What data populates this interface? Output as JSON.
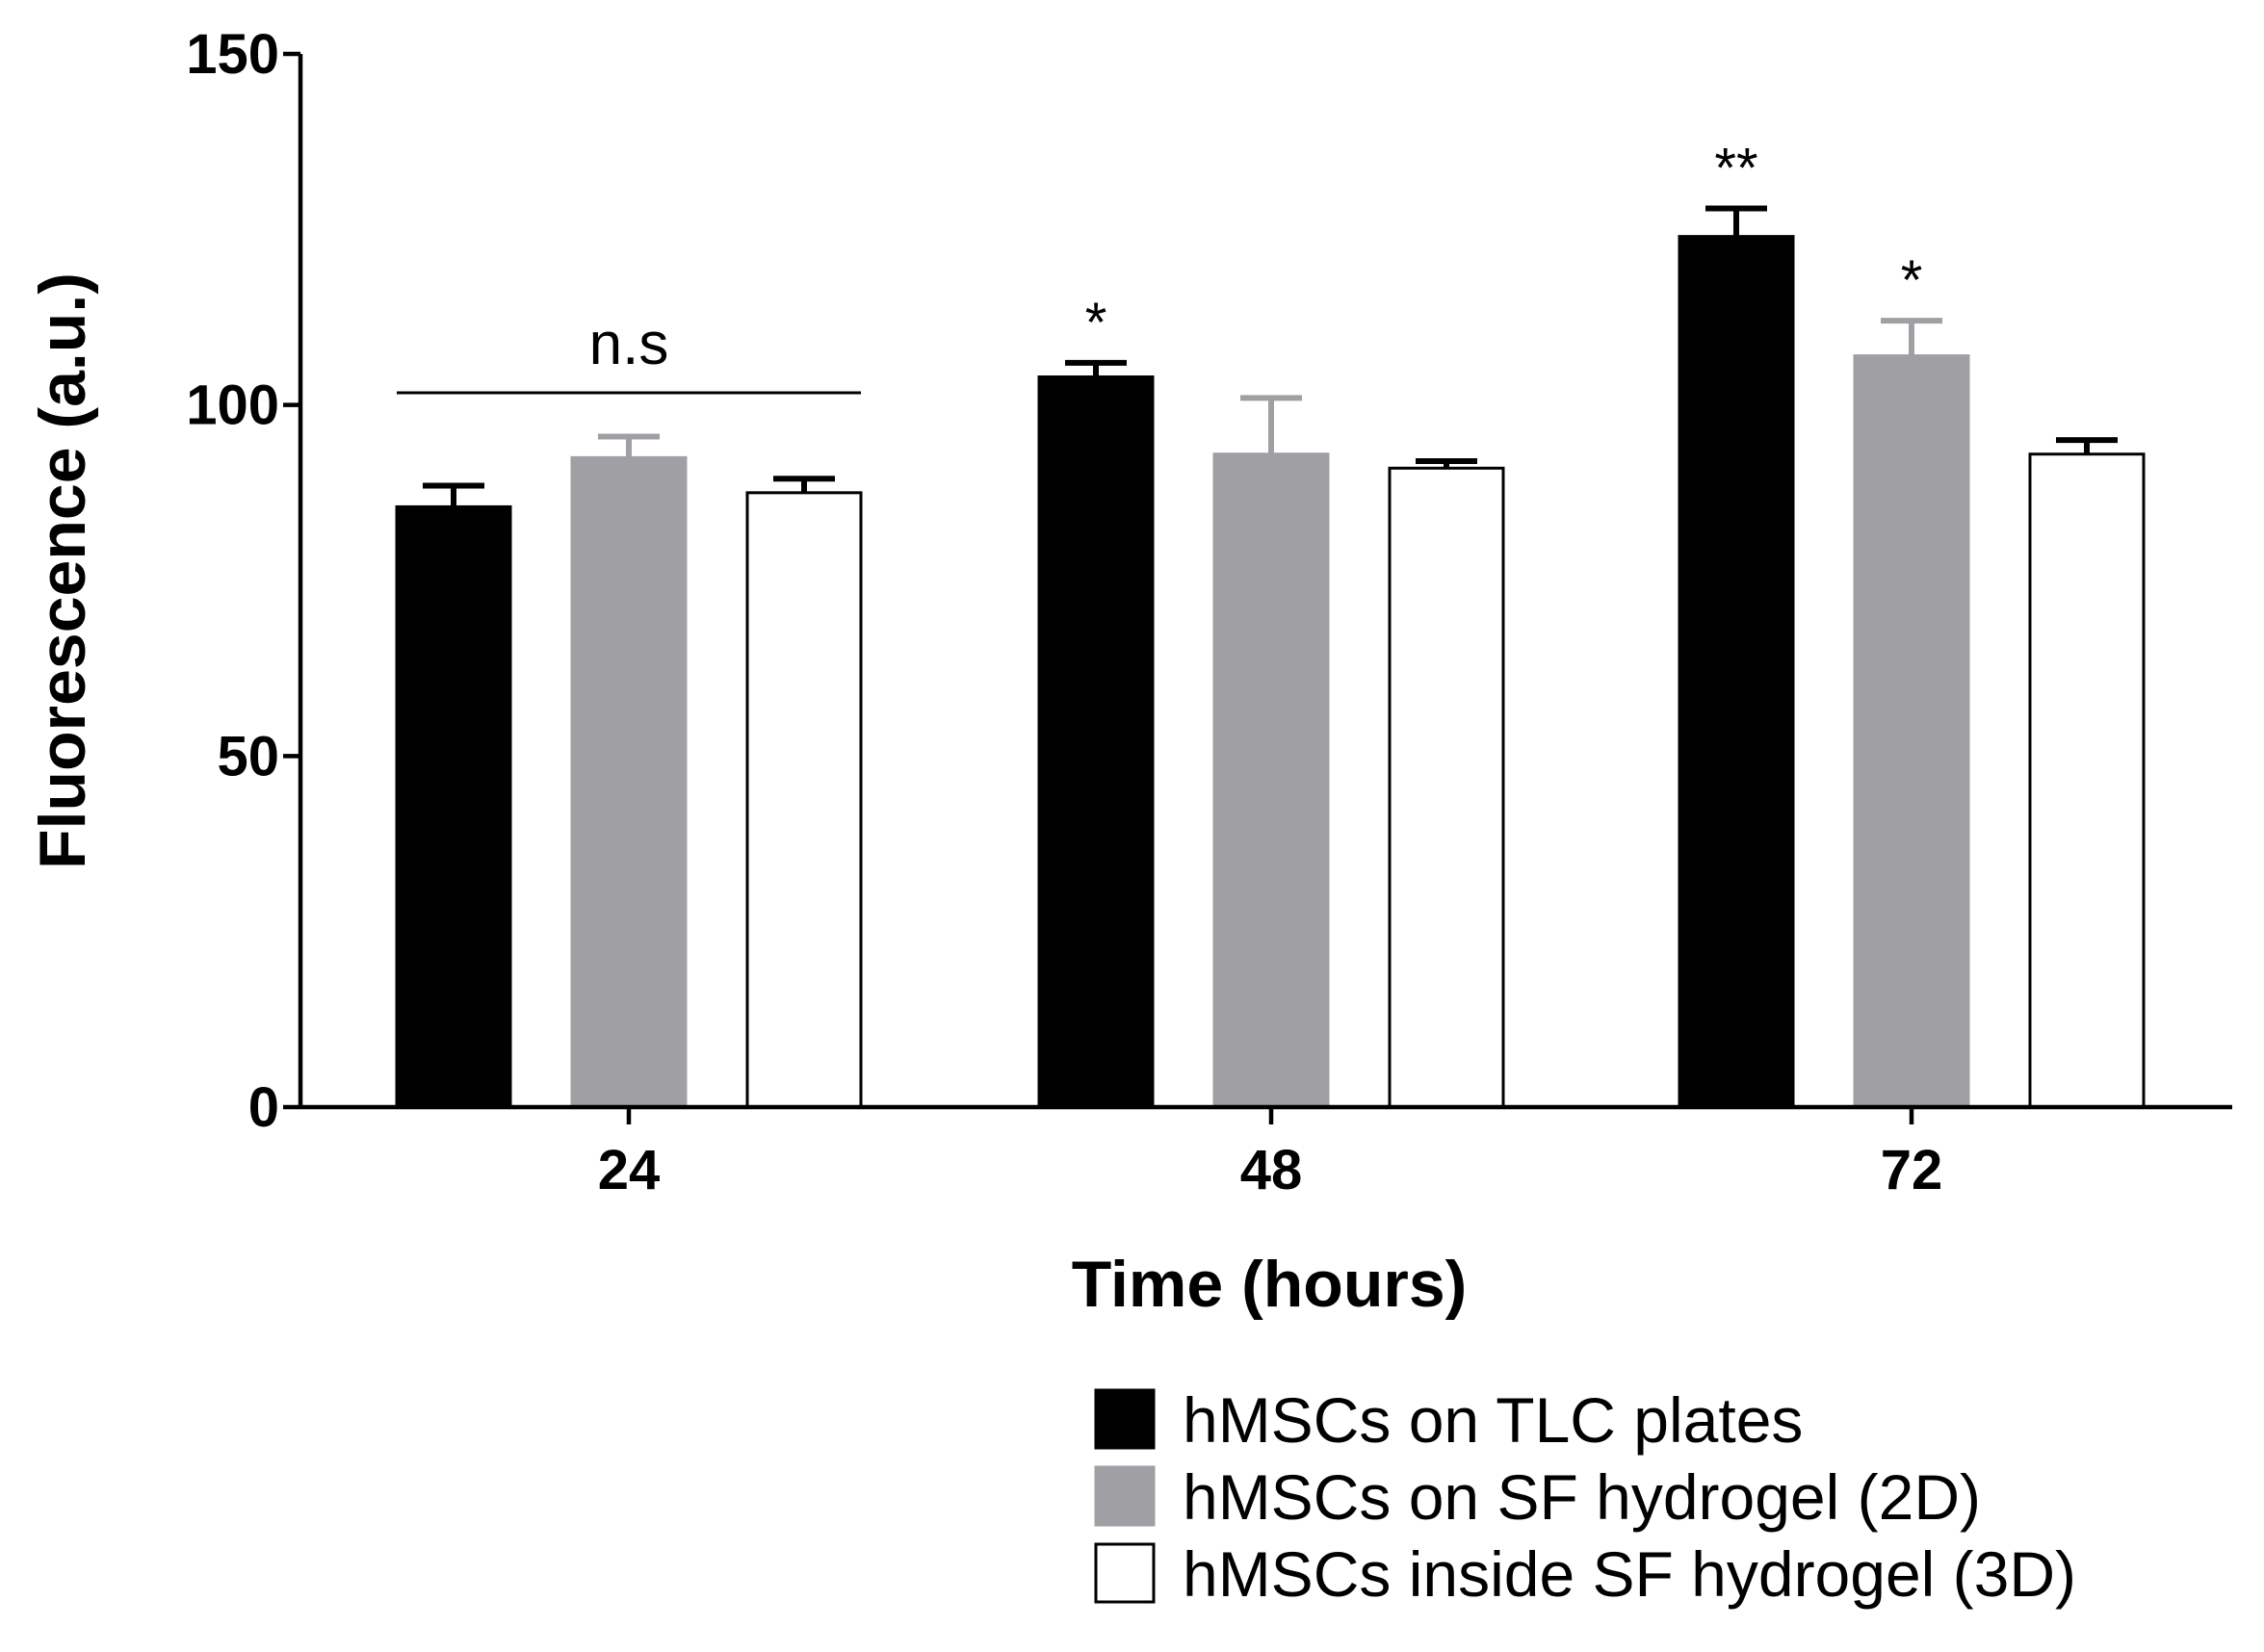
{
  "chart_data": {
    "type": "bar",
    "title": "",
    "xlabel": "Time (hours)",
    "ylabel": "Fluorescence (a.u.)",
    "categories": [
      "24",
      "48",
      "72"
    ],
    "ylim": [
      0,
      150
    ],
    "yticks": [
      0,
      50,
      100,
      150
    ],
    "grid": false,
    "legend_position": "bottom-right",
    "series": [
      {
        "name": "hMSCs on TLC plates",
        "fill": "#000000",
        "stroke": "#000000",
        "values": [
          85.5,
          104,
          124
        ],
        "errors": [
          3,
          2,
          4
        ],
        "annotations": [
          "",
          "*",
          "**"
        ]
      },
      {
        "name": "hMSCs on SF hydrogel (2D)",
        "fill": "#a0a0a4",
        "stroke": "#a0a0a4",
        "values": [
          92.5,
          93,
          107
        ],
        "errors": [
          3,
          8,
          5
        ],
        "annotations": [
          "",
          "",
          "*"
        ]
      },
      {
        "name": "hMSCs inside SF hydrogel (3D)",
        "fill": "#ffffff",
        "stroke": "#000000",
        "values": [
          87.5,
          91,
          93
        ],
        "errors": [
          2,
          1,
          2
        ],
        "annotations": [
          "",
          "",
          ""
        ]
      }
    ],
    "group_annotations": [
      {
        "category": "24",
        "text": "n.s"
      }
    ]
  }
}
